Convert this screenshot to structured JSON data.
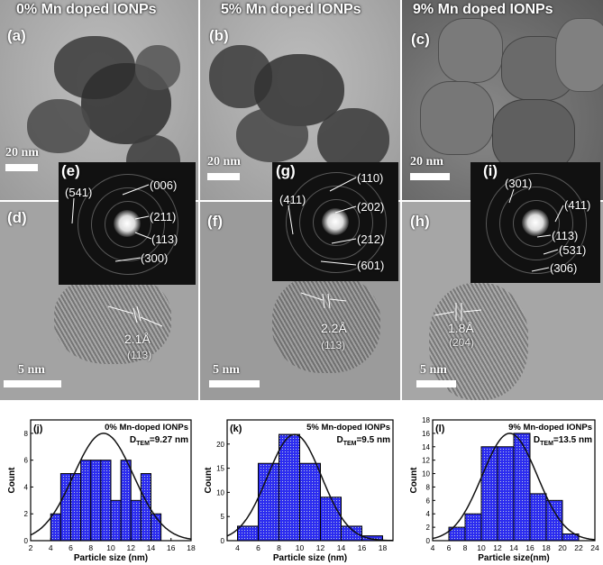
{
  "headers": [
    "0% Mn doped IONPs",
    "5% Mn doped IONPs",
    "9% Mn doped IONPs"
  ],
  "panel_labels": {
    "a": "(a)",
    "b": "(b)",
    "c": "(c)",
    "d": "(d)",
    "e": "(e)",
    "f": "(f)",
    "g": "(g)",
    "h": "(h)",
    "i": "(i)"
  },
  "scale_labels": {
    "top": "20 nm",
    "bottom": "5 nm"
  },
  "saed": {
    "e": [
      "(541)",
      "(006)",
      "(211)",
      "(113)",
      "(300)"
    ],
    "g": [
      "(411)",
      "(110)",
      "(202)",
      "(212)",
      "(601)"
    ],
    "i": [
      "(301)",
      "(411)",
      "(113)",
      "(531)",
      "(306)"
    ]
  },
  "lattice": {
    "d": {
      "spacing": "2.1Å",
      "plane": "(113)"
    },
    "f": {
      "spacing": "2.2Å",
      "plane": "(113)"
    },
    "h": {
      "spacing": "1.8Å",
      "plane": "(204)"
    }
  },
  "colors": {
    "bar_fill": "#2c2cf0",
    "fit_line": "#111111"
  },
  "chart_data": [
    {
      "type": "bar",
      "panel": "(j)",
      "title": "0% Mn-doped IONPs",
      "subtitle": "D_TEM=9.27 nm",
      "xlabel": "Particle size (nm)",
      "ylabel": "Count",
      "bin_edges": [
        4,
        5,
        6,
        7,
        8,
        9,
        10,
        11,
        12,
        13,
        14,
        15
      ],
      "values": [
        2,
        5,
        5,
        6,
        6,
        6,
        3,
        6,
        3,
        5,
        2
      ],
      "xlim": [
        2,
        18
      ],
      "xticks": [
        2,
        4,
        6,
        8,
        10,
        12,
        14,
        16,
        18
      ],
      "ylim": [
        0,
        9
      ],
      "yticks": [
        0,
        2,
        4,
        6,
        8
      ],
      "fit": {
        "mean": 9.27,
        "sigma": 3.0,
        "peak": 8
      }
    },
    {
      "type": "bar",
      "panel": "(k)",
      "title": "5% Mn-doped IONPs",
      "subtitle": "D_TEM=9.5 nm",
      "xlabel": "Particle size (nm)",
      "ylabel": "Count",
      "bin_edges": [
        4,
        6,
        8,
        10,
        12,
        14,
        16,
        18
      ],
      "values": [
        3,
        16,
        22,
        16,
        9,
        3,
        1
      ],
      "xlim": [
        3,
        19
      ],
      "xticks": [
        4,
        6,
        8,
        10,
        12,
        14,
        16,
        18
      ],
      "ylim": [
        0,
        25
      ],
      "yticks": [
        0,
        5,
        10,
        15,
        20
      ],
      "fit": {
        "mean": 9.5,
        "sigma": 2.6,
        "peak": 22
      }
    },
    {
      "type": "bar",
      "panel": "(l)",
      "title": "9% Mn-doped IONPs",
      "subtitle": "D_TEM=13.5 nm",
      "xlabel": "Particle size(nm)",
      "ylabel": "Count",
      "bin_edges": [
        6,
        8,
        10,
        12,
        14,
        16,
        18,
        20,
        22
      ],
      "values": [
        2,
        4,
        14,
        14,
        16,
        7,
        6,
        1
      ],
      "xlim": [
        4,
        24
      ],
      "xticks": [
        4,
        6,
        8,
        10,
        12,
        14,
        16,
        18,
        20,
        22,
        24
      ],
      "ylim": [
        0,
        18
      ],
      "yticks": [
        0,
        2,
        4,
        6,
        8,
        10,
        12,
        14,
        16,
        18
      ],
      "fit": {
        "mean": 13.5,
        "sigma": 3.4,
        "peak": 16
      }
    }
  ]
}
